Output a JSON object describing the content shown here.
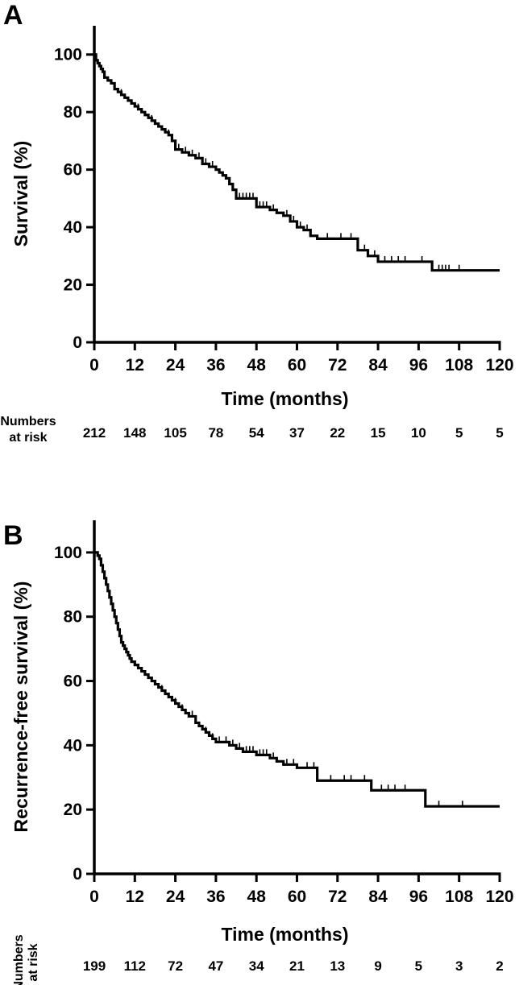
{
  "chart_data": [
    {
      "type": "line",
      "panel_label": "A",
      "xlabel": "Time (months)",
      "ylabel": "Survival (%)",
      "xlim": [
        0,
        120
      ],
      "ylim": [
        0,
        110
      ],
      "x_ticks": [
        0,
        12,
        24,
        36,
        48,
        60,
        72,
        84,
        96,
        108,
        120
      ],
      "y_ticks": [
        0,
        20,
        40,
        60,
        80,
        100
      ],
      "grid": false,
      "risk_table": {
        "title_lines": [
          "Numbers",
          "at risk"
        ],
        "times": [
          0,
          12,
          24,
          36,
          48,
          60,
          72,
          84,
          96,
          108,
          120
        ],
        "counts": [
          212,
          148,
          105,
          78,
          54,
          37,
          22,
          15,
          10,
          5,
          5
        ]
      },
      "series": [
        {
          "x": [
            0,
            0.5,
            1,
            1.5,
            2,
            2.5,
            3,
            4,
            5,
            6,
            7,
            8,
            9,
            10,
            11,
            12,
            13,
            14,
            15,
            16,
            17,
            18,
            19,
            20,
            21,
            22,
            23,
            24,
            26,
            28,
            30,
            32,
            34,
            36,
            37,
            38,
            39,
            40,
            41,
            42,
            48,
            52,
            54,
            56,
            58,
            60,
            62,
            64,
            66,
            72,
            75,
            78,
            81,
            84,
            100,
            120
          ],
          "y": [
            100,
            98,
            97,
            96,
            95,
            94,
            92,
            91,
            90,
            88,
            87,
            86,
            85,
            84,
            83,
            82,
            81,
            80,
            79,
            78,
            77,
            76,
            75,
            74,
            73,
            72,
            70,
            67,
            66,
            65,
            64,
            62,
            61,
            60,
            59,
            58,
            57,
            55,
            53,
            50,
            47,
            46,
            45,
            44,
            42,
            40,
            39,
            37,
            36,
            36,
            36,
            32,
            30,
            28,
            25,
            25
          ]
        }
      ],
      "censor_marks_x": [
        8,
        13,
        17,
        22,
        25,
        27,
        29,
        31,
        33,
        35,
        43,
        44,
        45,
        46,
        47,
        49,
        50,
        51,
        53,
        57,
        59,
        61,
        63,
        69,
        73,
        76,
        80,
        83,
        86,
        88,
        90,
        92,
        97,
        102,
        103,
        104,
        105,
        108
      ]
    },
    {
      "type": "line",
      "panel_label": "B",
      "xlabel": "Time (months)",
      "ylabel": "Recurrence-free survival (%)",
      "xlim": [
        0,
        120
      ],
      "ylim": [
        0,
        110
      ],
      "x_ticks": [
        0,
        12,
        24,
        36,
        48,
        60,
        72,
        84,
        96,
        108,
        120
      ],
      "y_ticks": [
        0,
        20,
        40,
        60,
        80,
        100
      ],
      "grid": false,
      "risk_table": {
        "title_lines": [
          "Numbers",
          "at risk"
        ],
        "times": [
          0,
          12,
          24,
          36,
          48,
          60,
          72,
          84,
          96,
          108,
          120
        ],
        "counts": [
          199,
          112,
          72,
          47,
          34,
          21,
          13,
          9,
          5,
          3,
          2
        ]
      },
      "series": [
        {
          "x": [
            0,
            1,
            1.5,
            2,
            2.5,
            3,
            3.5,
            4,
            4.5,
            5,
            5.5,
            6,
            6.5,
            7,
            7.5,
            8,
            8.5,
            9,
            9.5,
            10,
            10.5,
            11,
            12,
            13,
            14,
            15,
            16,
            17,
            18,
            19,
            20,
            21,
            22,
            23,
            24,
            25,
            26,
            27,
            28,
            30,
            31,
            32,
            33,
            34,
            35,
            36,
            40,
            42,
            44,
            48,
            52,
            54,
            56,
            60,
            66,
            82,
            98,
            120
          ],
          "y": [
            100,
            99,
            98,
            96,
            94,
            92,
            90,
            88,
            86,
            84,
            82,
            80,
            78,
            76,
            74,
            72,
            71,
            70,
            69,
            68,
            67,
            66,
            65,
            64,
            63,
            62,
            61,
            60,
            59,
            58,
            57,
            56,
            55,
            54,
            53,
            52,
            51,
            50,
            49,
            47,
            46,
            45,
            44,
            43,
            42,
            41,
            40,
            39,
            38,
            37,
            36,
            35,
            34,
            33,
            29,
            26,
            21,
            21
          ]
        }
      ],
      "censor_marks_x": [
        20,
        24,
        26,
        29,
        33,
        35,
        37,
        39,
        41,
        43,
        45,
        46,
        47,
        49,
        50,
        51,
        53,
        57,
        59,
        63,
        65,
        70,
        74,
        76,
        80,
        85,
        87,
        89,
        92,
        102,
        109
      ]
    }
  ]
}
